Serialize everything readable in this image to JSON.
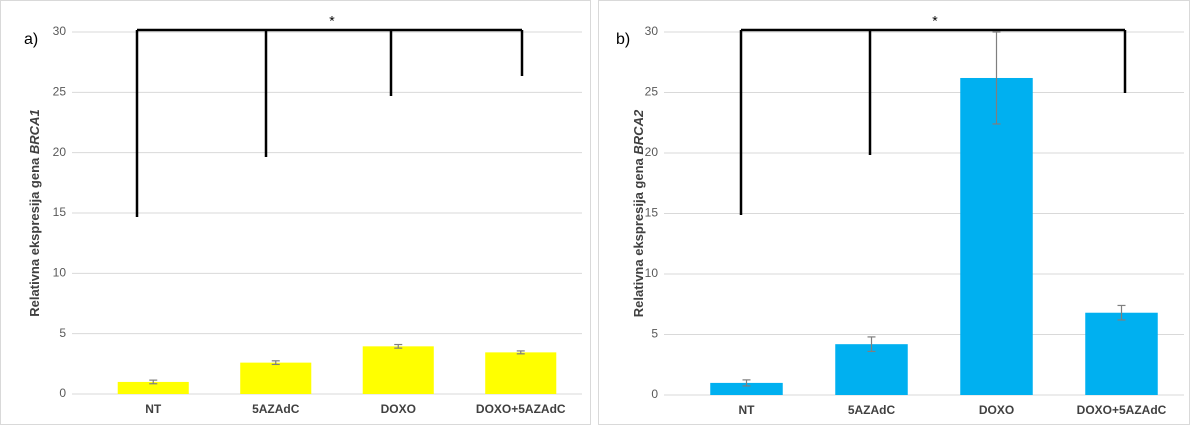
{
  "chart_data": [
    {
      "type": "bar",
      "panel": "a)",
      "ylabel": "Relativna ekspresija gena",
      "ylabel_italic": "BRCA1",
      "significance": "*",
      "categories": [
        "NT",
        "5AZAdC",
        "DOXO",
        "DOXO+5AZAdC"
      ],
      "values": [
        1.0,
        2.6,
        3.95,
        3.45
      ],
      "errors": [
        0.15,
        0.15,
        0.15,
        0.12
      ],
      "color": "#ffff00",
      "ylim": [
        0,
        30
      ],
      "yticks": [
        0,
        5,
        10,
        15,
        20,
        25,
        30
      ],
      "grid": true
    },
    {
      "type": "bar",
      "panel": "b)",
      "ylabel": "Relativna ekspresija gena",
      "ylabel_italic": "BRCA2",
      "significance": "*",
      "categories": [
        "NT",
        "5AZAdC",
        "DOXO",
        "DOXO+5AZAdC"
      ],
      "values": [
        1.0,
        4.2,
        26.2,
        6.8
      ],
      "errors": [
        0.25,
        0.6,
        3.8,
        0.6
      ],
      "color": "#00b0f0",
      "ylim": [
        0,
        30
      ],
      "yticks": [
        0,
        5,
        10,
        15,
        20,
        25,
        30
      ],
      "grid": true
    }
  ]
}
